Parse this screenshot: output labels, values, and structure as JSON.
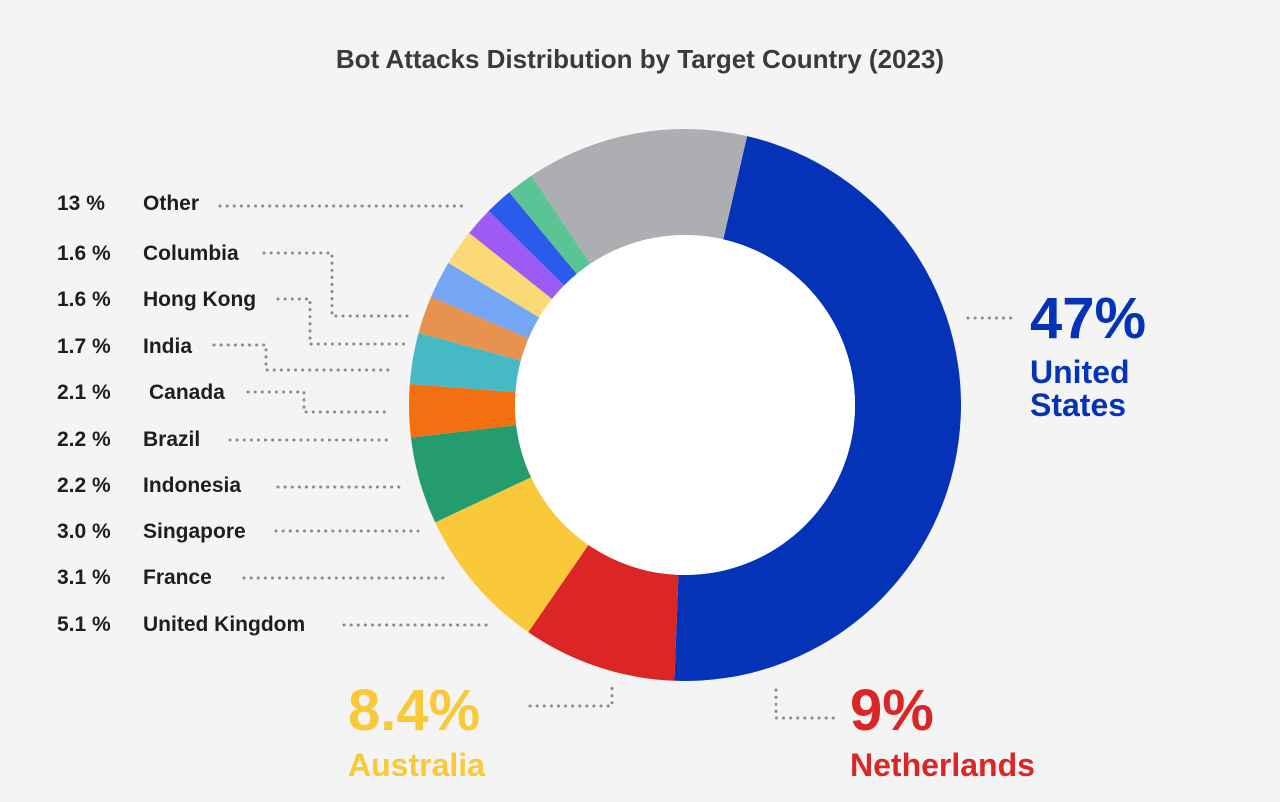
{
  "chart_data": {
    "type": "donut",
    "title": "Bot Attacks Distribution by Target Country (2023)",
    "slices": [
      {
        "label": "United States",
        "pct_label": "47%",
        "value": 47,
        "color": "#0533b8"
      },
      {
        "label": "Netherlands",
        "pct_label": "9%",
        "value": 9,
        "color": "#dc2626"
      },
      {
        "label": "Australia",
        "pct_label": "8.4%",
        "value": 8.4,
        "color": "#f9c93a"
      },
      {
        "label": "United Kingdom",
        "pct_label": "5.1 %",
        "value": 5.1,
        "color": "#259c6e"
      },
      {
        "label": "France",
        "pct_label": "3.1 %",
        "value": 3.1,
        "color": "#f27011"
      },
      {
        "label": "Singapore",
        "pct_label": "3.0 %",
        "value": 3.0,
        "color": "#45b9c4"
      },
      {
        "label": "Indonesia",
        "pct_label": "2.2 %",
        "value": 2.2,
        "color": "#e5934f"
      },
      {
        "label": "Brazil",
        "pct_label": "2.2 %",
        "value": 2.2,
        "color": "#75a6f6"
      },
      {
        "label": "Canada",
        "pct_label": "2.1 %",
        "value": 2.1,
        "color": "#fcd977"
      },
      {
        "label": "India",
        "pct_label": "1.7 %",
        "value": 1.7,
        "color": "#9e5af5"
      },
      {
        "label": "Hong Kong",
        "pct_label": "1.6 %",
        "value": 1.6,
        "color": "#2a5bec"
      },
      {
        "label": "Columbia",
        "pct_label": "1.6 %",
        "value": 1.6,
        "color": "#5bc494"
      },
      {
        "label": "Other",
        "pct_label": "13 %",
        "value": 13,
        "color": "#adaeb1"
      }
    ]
  }
}
